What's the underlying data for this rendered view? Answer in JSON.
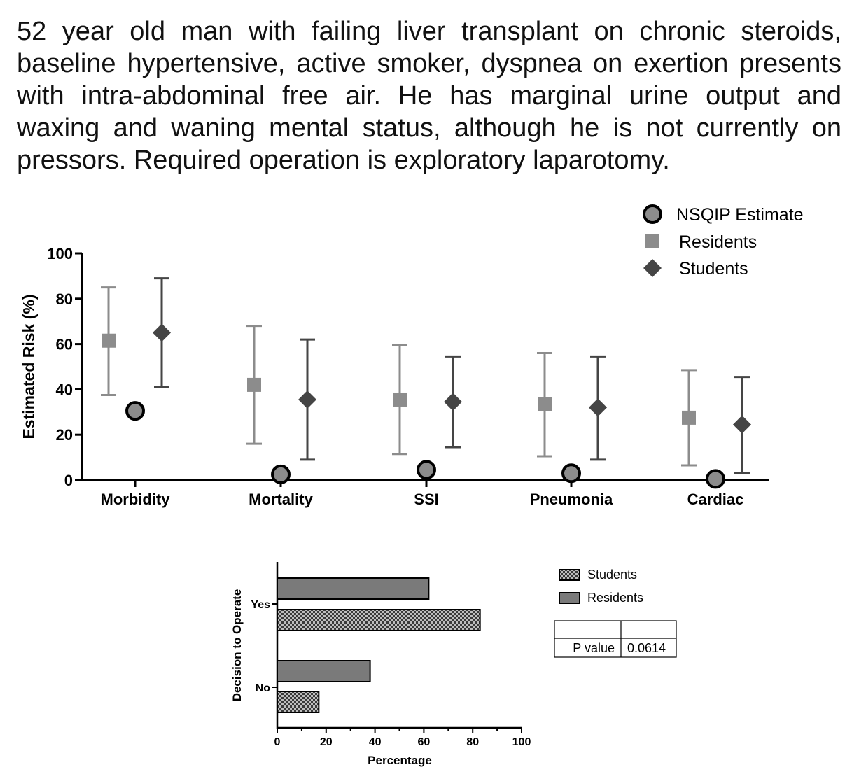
{
  "scenario_text": "52 year old man with failing liver transplant on chronic steroids, baseline hypertensive, active smoker, dyspnea on exertion presents with intra-abdominal free air.  He has marginal urine output and waxing and waning mental status, although he is not currently on pressors.  Required operation is exploratory laparotomy.",
  "chart_data": [
    {
      "type": "scatter",
      "title": "",
      "xlabel": "",
      "ylabel": "Estimated Risk (%)",
      "ylim": [
        0,
        100
      ],
      "yticks": [
        "0",
        "20",
        "40",
        "60",
        "80",
        "100"
      ],
      "categories": [
        "Morbidity",
        "Mortality",
        "SSI",
        "Pneumonia",
        "Cardiac"
      ],
      "legend_position": "top-right",
      "series": [
        {
          "name": "NSQIP Estimate",
          "marker": "circle",
          "color": "#8c8c8c",
          "values": [
            30.5,
            2.5,
            4.5,
            3,
            0.5
          ]
        },
        {
          "name": "Residents",
          "marker": "square",
          "color": "#8c8c8c",
          "values": [
            61.5,
            42,
            35.5,
            33.5,
            27.5
          ],
          "err_low": [
            37.5,
            16,
            11.5,
            10.5,
            6.5
          ],
          "err_high": [
            85,
            68,
            59.5,
            56,
            48.5
          ]
        },
        {
          "name": "Students",
          "marker": "diamond",
          "color": "#454545",
          "values": [
            65,
            35.5,
            34.5,
            32,
            24.5
          ],
          "err_low": [
            41,
            9,
            14.5,
            9,
            3
          ],
          "err_high": [
            89,
            62,
            54.5,
            54.5,
            45.5
          ]
        }
      ]
    },
    {
      "type": "bar",
      "orientation": "horizontal",
      "title": "",
      "xlabel": "Percentage",
      "ylabel": "Decision to Operate",
      "xlim": [
        0,
        100
      ],
      "xticks": [
        "0",
        "20",
        "40",
        "60",
        "80",
        "100"
      ],
      "categories": [
        "Yes",
        "No"
      ],
      "legend_position": "top-right",
      "series": [
        {
          "name": "Students",
          "pattern": "checkered",
          "values": [
            83,
            17
          ]
        },
        {
          "name": "Residents",
          "pattern": "solid",
          "color": "#7a7a7a",
          "values": [
            62,
            38
          ]
        }
      ],
      "stats_table": {
        "label": "P value",
        "value": "0.0614"
      }
    }
  ]
}
